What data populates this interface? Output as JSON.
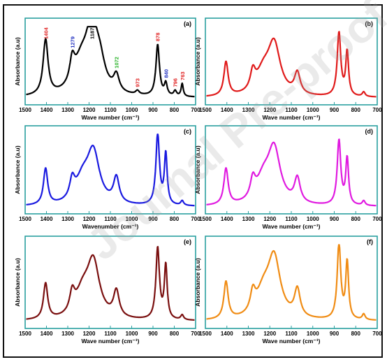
{
  "watermark": "Journal Pre-proof",
  "chart_data": [
    {
      "panel": "(a)",
      "type": "line",
      "color": "#000000",
      "xlabel": "Wave number (cm⁻¹)",
      "ylabel": "Absorbance (a.u)",
      "xlim": [
        1500,
        700
      ],
      "xticks": [
        "1500",
        "1400",
        "1300",
        "1200",
        "1100",
        "1000",
        "900",
        "800",
        "700"
      ],
      "peaks": [
        {
          "x": 1404,
          "y": 0.73,
          "w": 14
        },
        {
          "x": 1279,
          "y": 0.3,
          "w": 14
        },
        {
          "x": 1235,
          "y": 0.42,
          "w": 45
        },
        {
          "x": 1187,
          "y": 0.79,
          "w": 30
        },
        {
          "x": 1150,
          "y": 0.35,
          "w": 30
        },
        {
          "x": 1072,
          "y": 0.22,
          "w": 16
        },
        {
          "x": 973,
          "y": 0.05,
          "w": 10
        },
        {
          "x": 878,
          "y": 0.68,
          "w": 10
        },
        {
          "x": 840,
          "y": 0.16,
          "w": 8
        },
        {
          "x": 796,
          "y": 0.07,
          "w": 8
        },
        {
          "x": 763,
          "y": 0.17,
          "w": 6
        }
      ],
      "labels": [
        {
          "text": "1404",
          "x": 1404,
          "color": "#e02020"
        },
        {
          "text": "1279",
          "x": 1279,
          "color": "#2030c0"
        },
        {
          "text": "1187",
          "x": 1187,
          "color": "#000000"
        },
        {
          "text": "1072",
          "x": 1072,
          "color": "#22b022"
        },
        {
          "text": "973",
          "x": 973,
          "color": "#e02020"
        },
        {
          "text": "878",
          "x": 878,
          "color": "#e02020"
        },
        {
          "text": "840",
          "x": 840,
          "color": "#2030c0"
        },
        {
          "text": "796",
          "x": 796,
          "color": "#e02020"
        },
        {
          "text": "763",
          "x": 763,
          "color": "#e02020"
        }
      ]
    },
    {
      "panel": "(b)",
      "type": "line",
      "color": "#e01a1a",
      "xlabel": "Wave number (cm⁻¹)",
      "ylabel": "Absorbance (a.u)",
      "xlim": [
        1500,
        700
      ],
      "xticks": [
        "1500",
        "1400",
        "1300",
        "1200",
        "1100",
        "1000",
        "900",
        "800",
        "700"
      ],
      "peaks": [
        {
          "x": 1404,
          "y": 0.45,
          "w": 12
        },
        {
          "x": 1279,
          "y": 0.24,
          "w": 14
        },
        {
          "x": 1230,
          "y": 0.28,
          "w": 40
        },
        {
          "x": 1180,
          "y": 0.66,
          "w": 35
        },
        {
          "x": 1072,
          "y": 0.28,
          "w": 16
        },
        {
          "x": 878,
          "y": 0.84,
          "w": 10
        },
        {
          "x": 840,
          "y": 0.58,
          "w": 8
        },
        {
          "x": 763,
          "y": 0.06,
          "w": 8
        }
      ],
      "labels": []
    },
    {
      "panel": "(c)",
      "type": "line",
      "color": "#1a1ae0",
      "xlabel": "Wavenumber (cm⁻¹)",
      "ylabel": "Absorbance (a.u)",
      "xlim": [
        1500,
        700
      ],
      "xticks": [
        "1500",
        "1400",
        "1300",
        "1200",
        "1100",
        "1000",
        "900",
        "800",
        "700"
      ],
      "peaks": [
        {
          "x": 1404,
          "y": 0.47,
          "w": 12
        },
        {
          "x": 1279,
          "y": 0.24,
          "w": 14
        },
        {
          "x": 1230,
          "y": 0.3,
          "w": 40
        },
        {
          "x": 1180,
          "y": 0.66,
          "w": 35
        },
        {
          "x": 1072,
          "y": 0.33,
          "w": 16
        },
        {
          "x": 878,
          "y": 0.93,
          "w": 10
        },
        {
          "x": 840,
          "y": 0.66,
          "w": 8
        },
        {
          "x": 763,
          "y": 0.06,
          "w": 8
        }
      ],
      "labels": []
    },
    {
      "panel": "(d)",
      "type": "line",
      "color": "#e01ae0",
      "xlabel": "Wave number (cm⁻¹)",
      "ylabel": "Absorbance (a.u)",
      "xlim": [
        1500,
        700
      ],
      "xticks": [
        "1500",
        "1400",
        "1300",
        "1200",
        "1100",
        "1000",
        "900",
        "800",
        "700"
      ],
      "peaks": [
        {
          "x": 1404,
          "y": 0.47,
          "w": 12
        },
        {
          "x": 1279,
          "y": 0.24,
          "w": 14
        },
        {
          "x": 1230,
          "y": 0.3,
          "w": 40
        },
        {
          "x": 1180,
          "y": 0.7,
          "w": 35
        },
        {
          "x": 1072,
          "y": 0.32,
          "w": 16
        },
        {
          "x": 878,
          "y": 0.84,
          "w": 10
        },
        {
          "x": 840,
          "y": 0.6,
          "w": 8
        },
        {
          "x": 763,
          "y": 0.06,
          "w": 8
        }
      ],
      "labels": []
    },
    {
      "panel": "(e)",
      "type": "line",
      "color": "#7a0f0f",
      "xlabel": "Wave number (cm⁻¹)",
      "ylabel": "Absorbance (a.u)",
      "xlim": [
        1500,
        700
      ],
      "xticks": [
        "1500",
        "1400",
        "1300",
        "1200",
        "1100",
        "1000",
        "900",
        "800",
        "700"
      ],
      "peaks": [
        {
          "x": 1404,
          "y": 0.44,
          "w": 12
        },
        {
          "x": 1279,
          "y": 0.24,
          "w": 14
        },
        {
          "x": 1230,
          "y": 0.3,
          "w": 40
        },
        {
          "x": 1180,
          "y": 0.68,
          "w": 35
        },
        {
          "x": 1072,
          "y": 0.32,
          "w": 16
        },
        {
          "x": 878,
          "y": 0.88,
          "w": 10
        },
        {
          "x": 840,
          "y": 0.66,
          "w": 8
        },
        {
          "x": 763,
          "y": 0.06,
          "w": 8
        }
      ],
      "labels": []
    },
    {
      "panel": "(f)",
      "type": "line",
      "color": "#f08c14",
      "xlabel": "Wave number (cm⁻¹)",
      "ylabel": "Absorbance (a.u)",
      "xlim": [
        1500,
        700
      ],
      "xticks": [
        "1500",
        "1400",
        "1300",
        "1200",
        "1100",
        "1000",
        "900",
        "800",
        "700"
      ],
      "peaks": [
        {
          "x": 1404,
          "y": 0.46,
          "w": 12
        },
        {
          "x": 1279,
          "y": 0.24,
          "w": 14
        },
        {
          "x": 1230,
          "y": 0.3,
          "w": 40
        },
        {
          "x": 1180,
          "y": 0.73,
          "w": 35
        },
        {
          "x": 1072,
          "y": 0.34,
          "w": 16
        },
        {
          "x": 878,
          "y": 0.93,
          "w": 10
        },
        {
          "x": 840,
          "y": 0.7,
          "w": 8
        },
        {
          "x": 763,
          "y": 0.07,
          "w": 8
        }
      ],
      "labels": []
    }
  ]
}
